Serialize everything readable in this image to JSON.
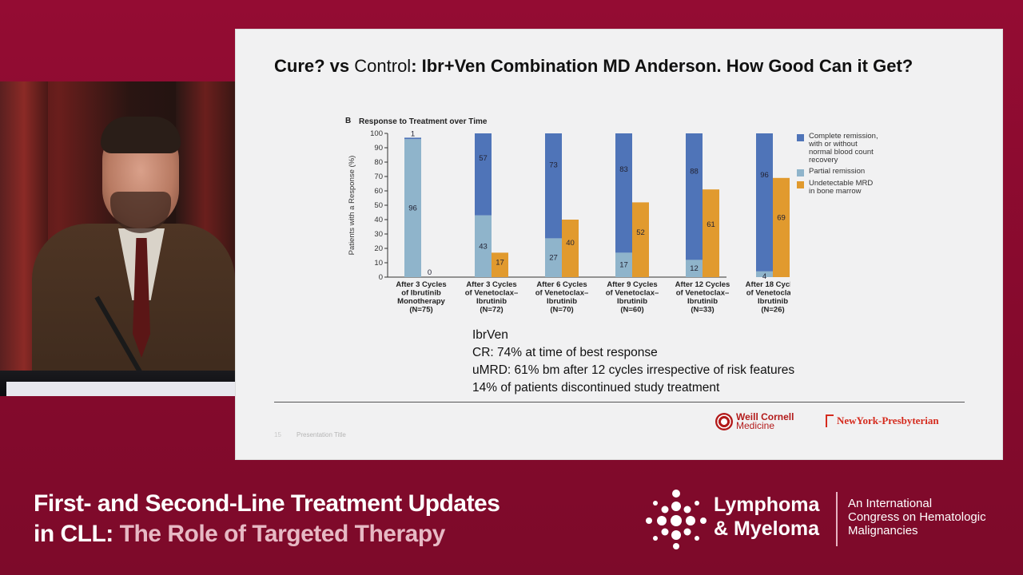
{
  "session": {
    "line1": "First- and Second-Line Treatment Updates",
    "line2_prefix": "in CLL:",
    "line2_highlight": "The Role of Targeted Therapy"
  },
  "conference": {
    "name_line1": "Lymphoma",
    "name_line2": "& Myeloma",
    "desc_line1": "An International",
    "desc_line2": "Congress on Hematologic",
    "desc_line3": "Malignancies"
  },
  "slide": {
    "title_part1": "Cure? vs ",
    "title_part2": "Control",
    "title_part3": ": Ibr+Ven Combination MD Anderson. How Good Can it Get?",
    "figure_label": "B",
    "figure_title": "Response to Treatment over Time",
    "notes": [
      "IbrVen",
      "CR: 74% at time of best response",
      "uMRD: 61% bm after 12 cycles irrespective of risk features",
      "14% of patients discontinued study treatment"
    ],
    "footer_number": "15",
    "footer_title": "Presentation Title",
    "logo_wc_line1": "Weill Cornell",
    "logo_wc_line2": "Medicine",
    "logo_nyp": "NewYork-Presbyterian"
  },
  "colors": {
    "complete_remission": "#4f74b8",
    "partial_remission": "#8fb4cb",
    "undetectable_mrd": "#e19a2e",
    "brand": "#8c0b30"
  },
  "chart_data": {
    "type": "bar",
    "title": "Response to Treatment over Time",
    "ylabel": "Patients with a Response (%)",
    "ylim": [
      0,
      100
    ],
    "yticks": [
      0,
      10,
      20,
      30,
      40,
      50,
      60,
      70,
      80,
      90,
      100
    ],
    "legend_position": "right",
    "categories": [
      [
        "After 3 Cycles",
        "of Ibrutinib",
        "Monotherapy",
        "(N=75)"
      ],
      [
        "After 3 Cycles",
        "of Venetoclax–",
        "Ibrutinib",
        "(N=72)"
      ],
      [
        "After 6 Cycles",
        "of Venetoclax–",
        "Ibrutinib",
        "(N=70)"
      ],
      [
        "After 9 Cycles",
        "of Venetoclax–",
        "Ibrutinib",
        "(N=60)"
      ],
      [
        "After 12 Cycles",
        "of Venetoclax–",
        "Ibrutinib",
        "(N=33)"
      ],
      [
        "After 18 Cycles",
        "of Venetoclax–",
        "Ibrutinib",
        "(N=26)"
      ]
    ],
    "series": [
      {
        "name": "Complete remission, with or without normal blood count recovery",
        "legend_lines": [
          "Complete remission,",
          "with or without",
          "normal blood count",
          "recovery"
        ],
        "values": [
          1,
          57,
          73,
          83,
          88,
          96
        ],
        "stack": "response"
      },
      {
        "name": "Partial remission",
        "legend_lines": [
          "Partial remission"
        ],
        "values": [
          96,
          43,
          27,
          17,
          12,
          4
        ],
        "stack": "response"
      },
      {
        "name": "Undetectable MRD in bone marrow",
        "legend_lines": [
          "Undetectable MRD",
          "in bone marrow"
        ],
        "values": [
          0,
          17,
          40,
          52,
          61,
          69
        ],
        "stack": "mrd"
      }
    ]
  }
}
